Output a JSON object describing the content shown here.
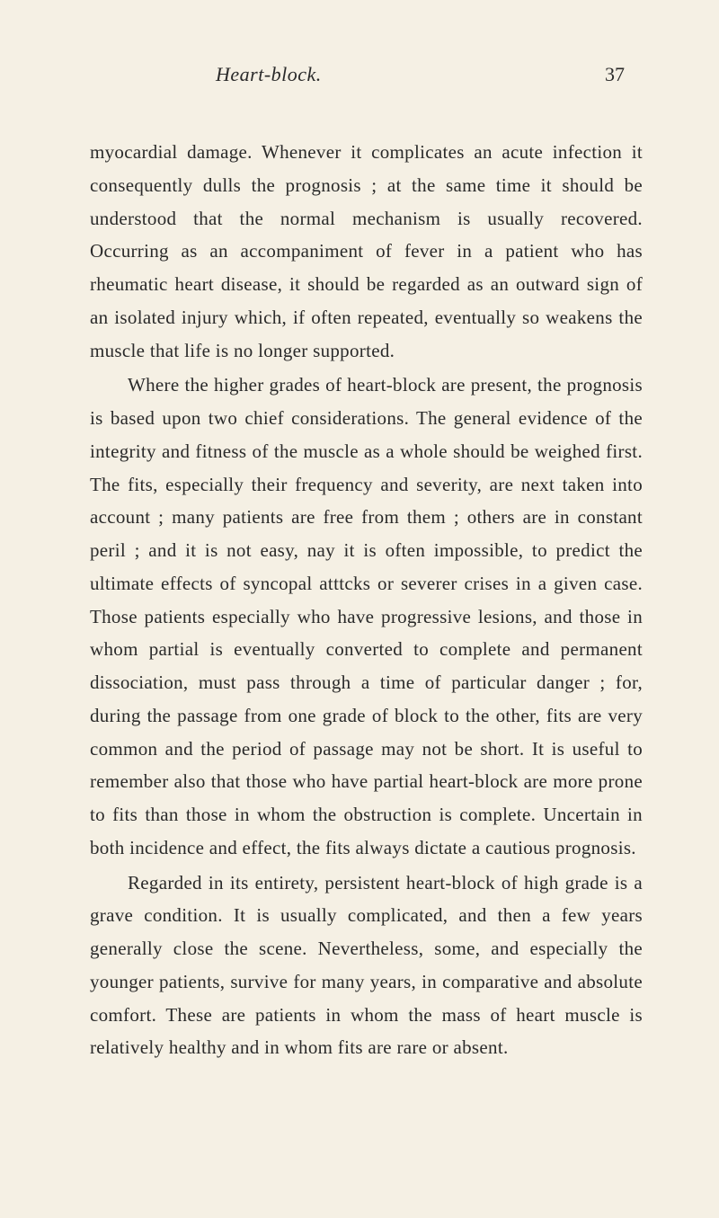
{
  "header": {
    "title": "Heart-block.",
    "pageNumber": "37"
  },
  "paragraphs": [
    {
      "indent": false,
      "text": "myocardial damage. Whenever it complicates an acute infection it consequently dulls the prognosis ; at the same time it should be understood that the normal mechanism is usually recovered. Occurring as an accompaniment of fever in a patient who has rheumatic heart disease, it should be regarded as an outward sign of an isolated injury which, if often repeated, eventually so weakens the muscle that life is no longer supported."
    },
    {
      "indent": true,
      "text": "Where the higher grades of heart-block are present, the prognosis is based upon two chief considerations. The general evidence of the integrity and fitness of the muscle as a whole should be weighed first. The fits, especially their frequency and severity, are next taken into account ; many patients are free from them ; others are in constant peril ; and it is not easy, nay it is often impossible, to predict the ultimate effects of syncopal atttcks or severer crises in a given case. Those patients especially who have progressive lesions, and those in whom partial is eventually converted to complete and permanent dissociation, must pass through a time of particular danger ; for, during the passage from one grade of block to the other, fits are very common and the period of passage may not be short. It is useful to remember also that those who have partial heart-block are more prone to fits than those in whom the obstruction is complete. Uncertain in both incidence and effect, the fits always dictate a cautious prognosis."
    },
    {
      "indent": true,
      "text": "Regarded in its entirety, persistent heart-block of high grade is a grave condition. It is usually complicated, and then a few years generally close the scene. Nevertheless, some, and especially the younger patients, survive for many years, in comparative and absolute comfort. These are patients in whom the mass of heart muscle is relatively healthy and in whom fits are rare or absent."
    }
  ]
}
